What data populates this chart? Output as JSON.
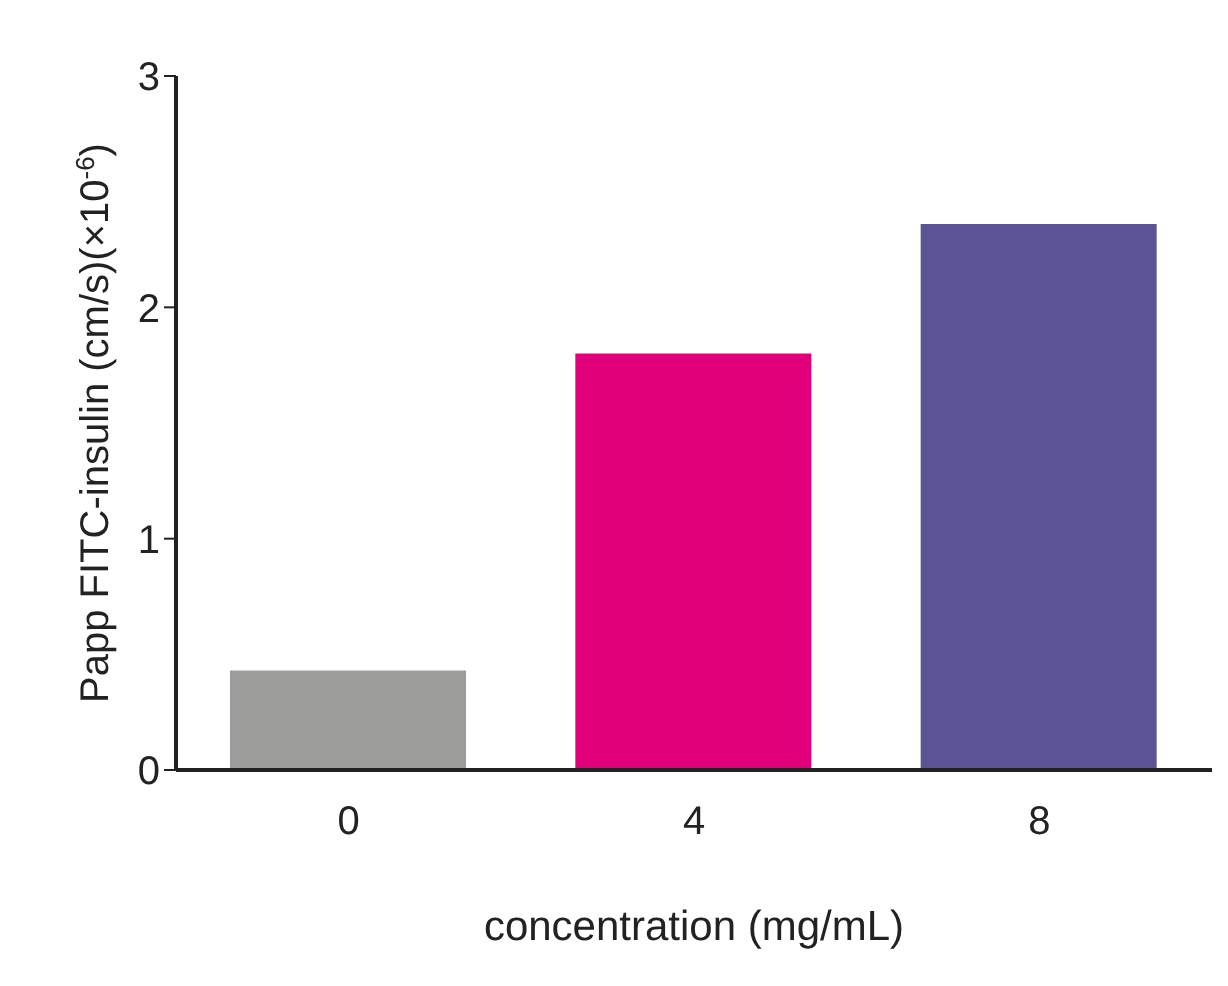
{
  "chart_data": {
    "type": "bar",
    "xlabel": "concentration (mg/mL)",
    "ylabel": "Papp FITC-insulin (cm/s)(×10$^{-6}$)",
    "categories": [
      "0",
      "4",
      "8"
    ],
    "values": [
      0.43,
      1.8,
      2.36
    ],
    "colors": [
      "#9d9d9c",
      "#e2007a",
      "#5a5494"
    ],
    "ylim": [
      0,
      3
    ],
    "yticks": [
      0,
      1,
      2,
      3
    ],
    "grid": false
  }
}
